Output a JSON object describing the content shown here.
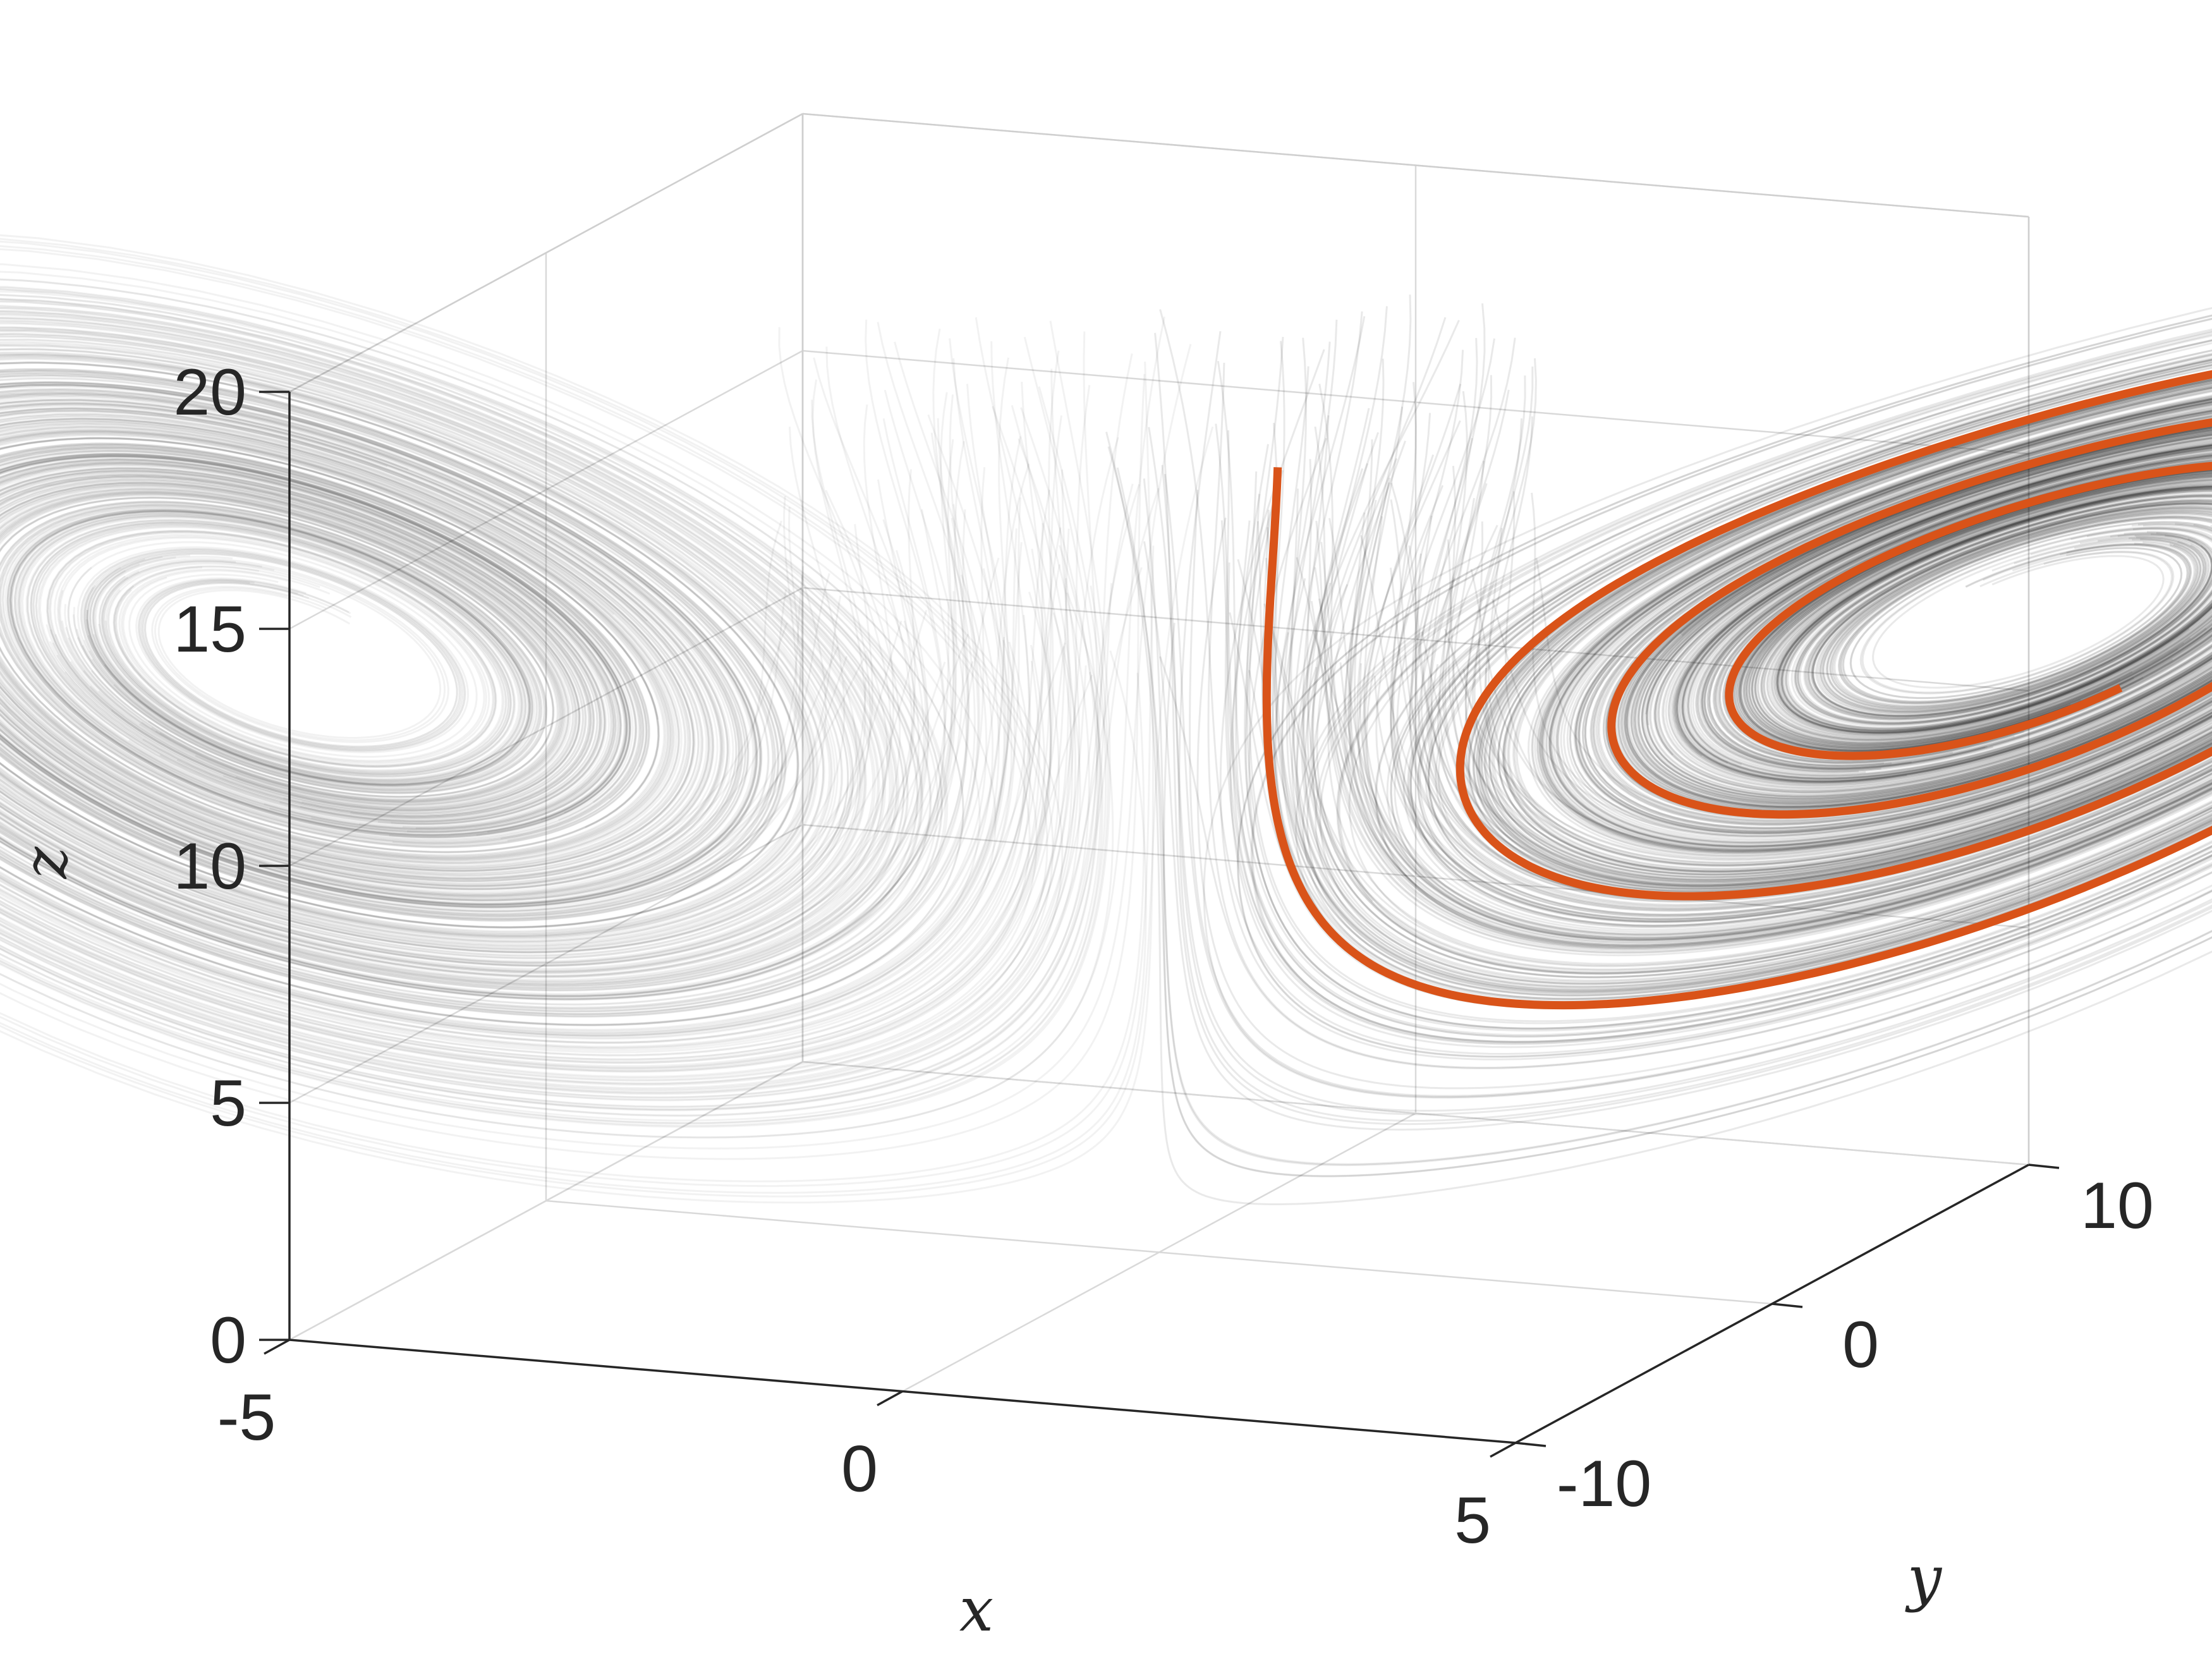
{
  "chart_data": {
    "type": "line",
    "title": "",
    "xlabel": "x",
    "ylabel": "y",
    "zlabel": "z",
    "x_ticks": [
      {
        "value": -5,
        "label": "-5"
      },
      {
        "value": 0,
        "label": "0"
      },
      {
        "value": 5,
        "label": "5"
      }
    ],
    "y_ticks": [
      {
        "value": -10,
        "label": "-10"
      },
      {
        "value": 0,
        "label": "0"
      },
      {
        "value": 10,
        "label": "10"
      }
    ],
    "z_ticks": [
      {
        "value": 0,
        "label": "0"
      },
      {
        "value": 5,
        "label": "5"
      },
      {
        "value": 10,
        "label": "10"
      },
      {
        "value": 15,
        "label": "15"
      },
      {
        "value": 20,
        "label": "20"
      }
    ],
    "xlim": [
      -5,
      5
    ],
    "ylim": [
      -10,
      10
    ],
    "zlim": [
      0,
      20
    ],
    "grid": true,
    "ensemble": {
      "color": "#000000",
      "start_region": {
        "x": [
          -2.5,
          2.5
        ],
        "y": [
          -5,
          5
        ],
        "z": [
          12,
          20
        ]
      },
      "spiral_centers": [
        {
          "x": 2.4,
          "y": 2.4,
          "z": 9.1
        },
        {
          "x": -2.4,
          "y": -2.4,
          "z": 9.1
        }
      ]
    },
    "highlighted": {
      "color": "#d95319",
      "start": {
        "x": 0.8,
        "y": 0.8,
        "z": 16.5
      }
    }
  }
}
